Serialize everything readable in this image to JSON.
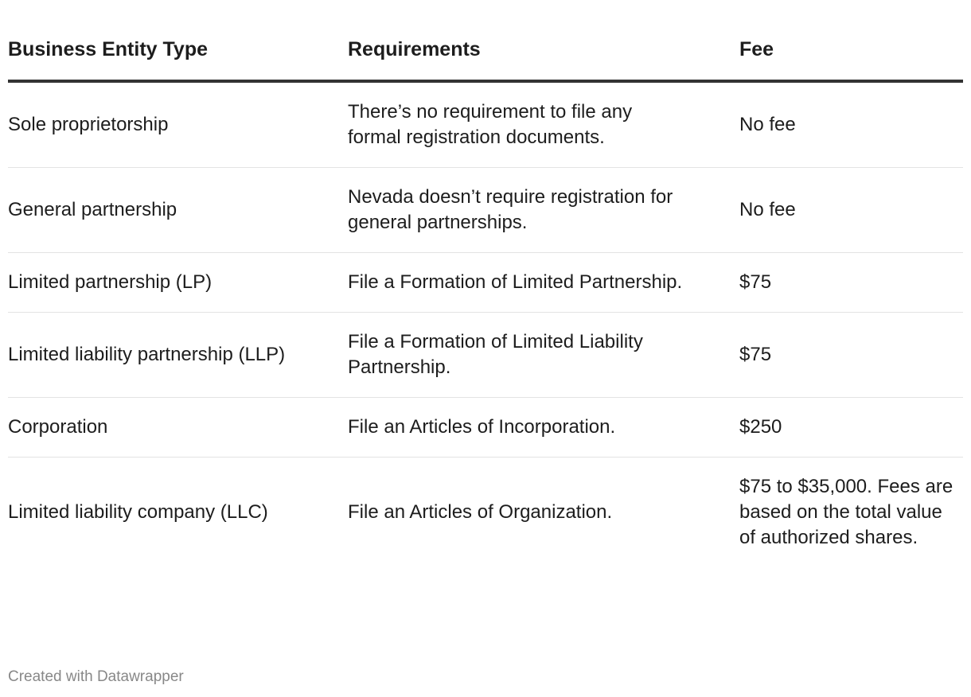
{
  "chart_data": {
    "type": "table",
    "columns": [
      "Business Entity Type",
      "Requirements",
      "Fee"
    ],
    "rows": [
      [
        "Sole proprietorship",
        "There’s no requirement to file any formal registration documents.",
        "No fee"
      ],
      [
        "General partnership",
        "Nevada doesn’t require registration for general partnerships.",
        "No fee"
      ],
      [
        "Limited partnership (LP)",
        "File a Formation of Limited Partnership.",
        "$75"
      ],
      [
        "Limited liability partnership (LLP)",
        "File a Formation of Limited Liability Partnership.",
        "$75"
      ],
      [
        "Corporation",
        "File an Articles of Incorporation.",
        "$250"
      ],
      [
        "Limited liability company (LLC)",
        "File an Articles of Organization.",
        "$75 to $35,000. Fees are based on the total value of authorized shares."
      ]
    ]
  },
  "footer": "Created with Datawrapper"
}
